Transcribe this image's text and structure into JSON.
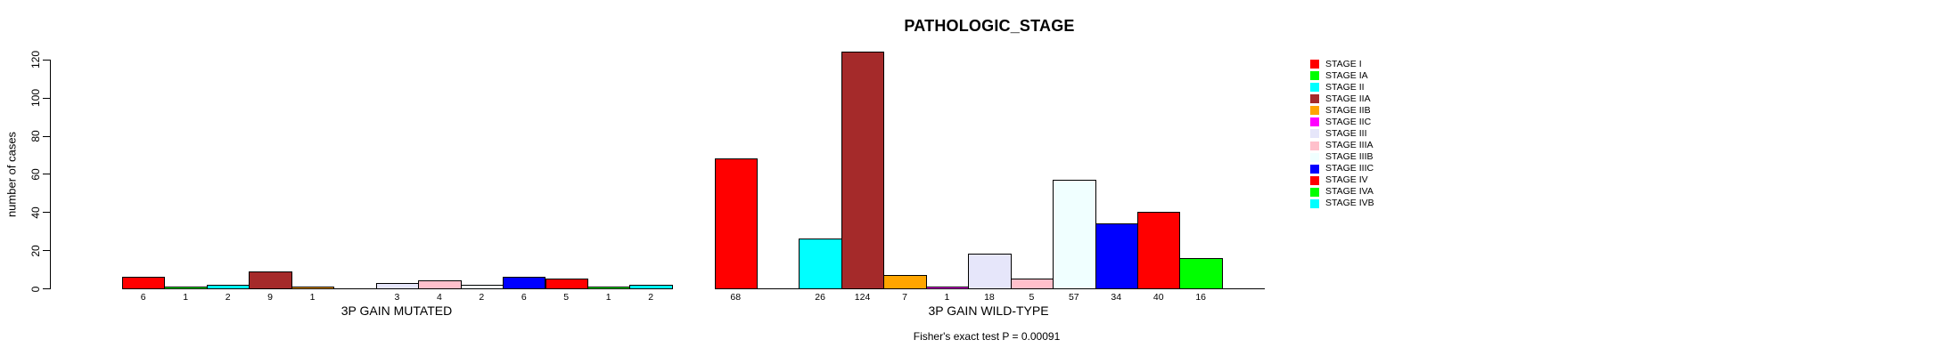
{
  "chart_data": {
    "type": "bar",
    "title": "PATHOLOGIC_STAGE",
    "ylabel": "number of cases",
    "ylim": [
      0,
      130
    ],
    "yticks": [
      0,
      20,
      40,
      60,
      80,
      100,
      120
    ],
    "grid": false,
    "legend_position": "right",
    "categories": [
      "STAGE I",
      "STAGE IA",
      "STAGE II",
      "STAGE IIA",
      "STAGE IIB",
      "STAGE IIC",
      "STAGE III",
      "STAGE IIIA",
      "STAGE IIIB",
      "STAGE IIIC",
      "STAGE IV",
      "STAGE IVA",
      "STAGE IVB"
    ],
    "colors": [
      "#FF0000",
      "#00FF00",
      "#00FFFF",
      "#A52A2A",
      "#FFA500",
      "#FF00FF",
      "#E6E6FA",
      "#FFC0CB",
      "#F0FFFF",
      "#0000FF",
      "#FF0000",
      "#00FF00",
      "#00FFFF"
    ],
    "groups": [
      {
        "label": "3P GAIN MUTATED",
        "values": [
          6,
          1,
          2,
          9,
          1,
          0,
          3,
          4,
          2,
          6,
          5,
          1,
          2
        ]
      },
      {
        "label": "3P GAIN WILD-TYPE",
        "values": [
          68,
          0,
          26,
          124,
          7,
          1,
          18,
          5,
          57,
          34,
          40,
          16,
          0
        ]
      }
    ],
    "footnote": "Fisher's exact test P = 0.00091"
  }
}
